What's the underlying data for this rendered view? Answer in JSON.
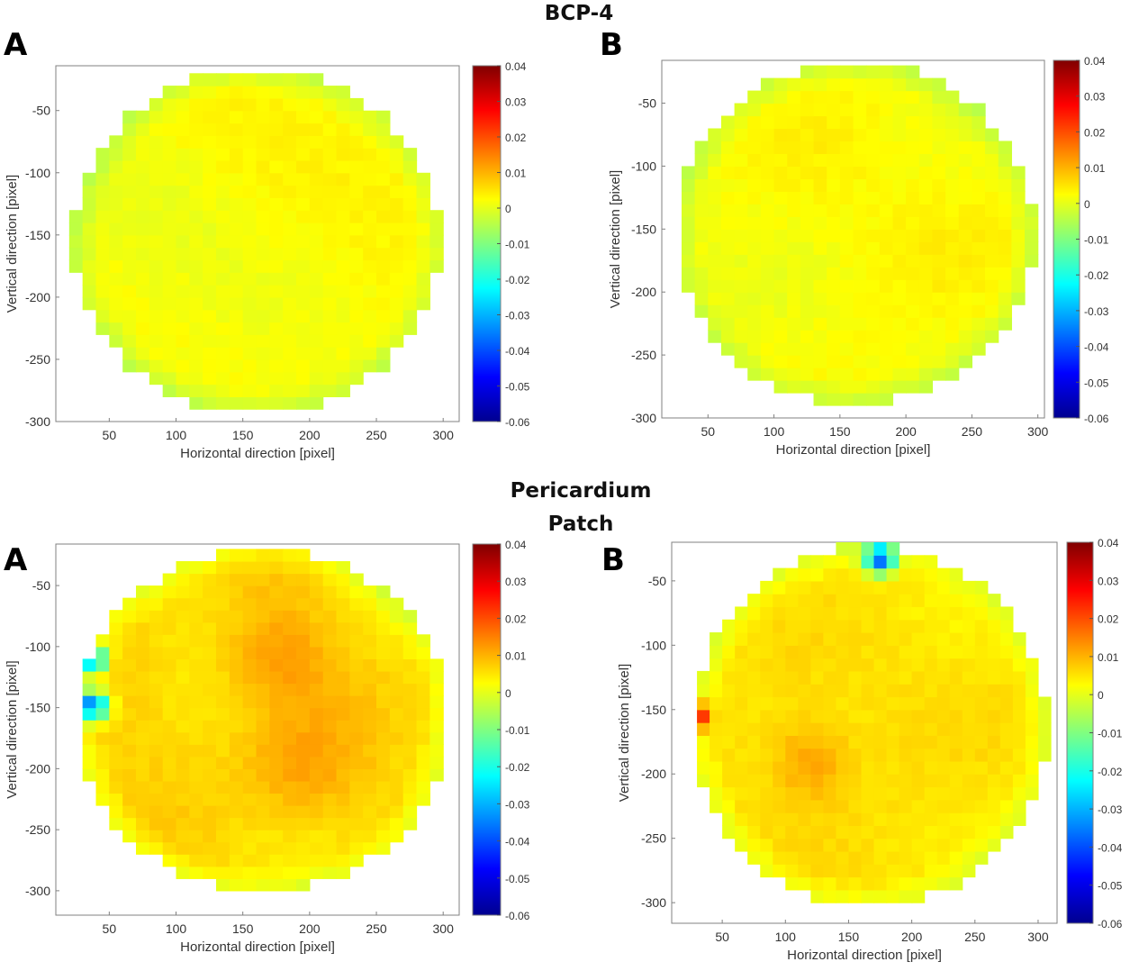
{
  "section_titles": {
    "top": "BCP-4",
    "bottom_line1": "Pericardium",
    "bottom_line2": "Patch"
  },
  "colors": {
    "jet": [
      "#00008f",
      "#0000ff",
      "#0080ff",
      "#00ffff",
      "#80ff80",
      "#ffff00",
      "#ff8000",
      "#ff0000",
      "#800000"
    ],
    "axis": "#808080",
    "text": "#333333"
  },
  "chart_data": [
    {
      "id": "bcp4-A",
      "panel_label": "A",
      "type": "heatmap",
      "xlabel": "Horizontal direction [pixel]",
      "ylabel": "Vertical direction [pixel]",
      "xlim": [
        10,
        312
      ],
      "ylim": [
        -300,
        -14
      ],
      "xticks": [
        50,
        100,
        150,
        200,
        250,
        300
      ],
      "yticks": [
        -50,
        -100,
        -150,
        -200,
        -250,
        -300
      ],
      "colorbar": {
        "min": -0.06,
        "max": 0.04,
        "ticks": [
          "0.04",
          "0.03",
          "0.02",
          "0.01",
          "0",
          "-0.01",
          "-0.02",
          "-0.03",
          "-0.04",
          "-0.05",
          "-0.06"
        ]
      },
      "disk": {
        "center": [
          160,
          -155
        ],
        "radius": 138
      },
      "base_value": 0.002,
      "variation": 0.003,
      "hotspots": [],
      "seed": 11
    },
    {
      "id": "bcp4-B",
      "panel_label": "B",
      "type": "heatmap",
      "xlabel": "Horizontal direction [pixel]",
      "ylabel": "Vertical direction [pixel]",
      "xlim": [
        15,
        305
      ],
      "ylim": [
        -300,
        -16
      ],
      "xticks": [
        50,
        100,
        150,
        200,
        250,
        300
      ],
      "yticks": [
        -50,
        -100,
        -150,
        -200,
        -250,
        -300
      ],
      "colorbar": {
        "min": -0.06,
        "max": 0.04,
        "ticks": [
          "0.04",
          "0.03",
          "0.02",
          "0.01",
          "0",
          "-0.01",
          "-0.02",
          "-0.03",
          "-0.04",
          "-0.05",
          "-0.06"
        ]
      },
      "disk": {
        "center": [
          161,
          -153
        ],
        "radius": 136
      },
      "base_value": 0.003,
      "variation": 0.003,
      "hotspots": [],
      "seed": 23
    },
    {
      "id": "pericardium-A",
      "panel_label": "A",
      "type": "heatmap",
      "xlabel": "Horizontal direction [pixel]",
      "ylabel": "Vertical direction [pixel]",
      "xlim": [
        10,
        312
      ],
      "ylim": [
        -320,
        -16
      ],
      "xticks": [
        50,
        100,
        150,
        200,
        250,
        300
      ],
      "yticks": [
        -50,
        -100,
        -150,
        -200,
        -250,
        -300
      ],
      "colorbar": {
        "min": -0.06,
        "max": 0.04,
        "ticks": [
          "0.04",
          "0.03",
          "0.02",
          "0.01",
          "0",
          "-0.01",
          "-0.02",
          "-0.03",
          "-0.04",
          "-0.05",
          "-0.06"
        ]
      },
      "disk": {
        "center": [
          165,
          -160
        ],
        "radius": 140
      },
      "base_value": 0.006,
      "variation": 0.003,
      "hotspots": [
        {
          "x": 38,
          "y": -110,
          "r": 7,
          "v": -0.03
        },
        {
          "x": 38,
          "y": -148,
          "r": 8,
          "v": -0.035
        },
        {
          "x": 175,
          "y": -110,
          "r": 30,
          "v": 0.012
        },
        {
          "x": 190,
          "y": -200,
          "r": 30,
          "v": 0.011
        }
      ],
      "seed": 37
    },
    {
      "id": "pericardium-B",
      "panel_label": "B",
      "type": "heatmap",
      "xlabel": "Horizontal direction [pixel]",
      "ylabel": "Vertical direction [pixel]",
      "xlim": [
        10,
        315
      ],
      "ylim": [
        -316,
        -20
      ],
      "xticks": [
        50,
        100,
        150,
        200,
        250,
        300
      ],
      "yticks": [
        -50,
        -100,
        -150,
        -200,
        -250,
        -300
      ],
      "colorbar": {
        "min": -0.06,
        "max": 0.04,
        "ticks": [
          "0.04",
          "0.03",
          "0.02",
          "0.01",
          "0",
          "-0.01",
          "-0.02",
          "-0.03",
          "-0.04",
          "-0.05",
          "-0.06"
        ]
      },
      "disk": {
        "center": [
          167,
          -163
        ],
        "radius": 140
      },
      "base_value": 0.005,
      "variation": 0.003,
      "hotspots": [
        {
          "x": 30,
          "y": -155,
          "r": 7,
          "v": 0.03
        },
        {
          "x": 175,
          "y": -33,
          "r": 8,
          "v": -0.035
        },
        {
          "x": 120,
          "y": -190,
          "r": 22,
          "v": 0.012
        }
      ],
      "seed": 53
    }
  ]
}
